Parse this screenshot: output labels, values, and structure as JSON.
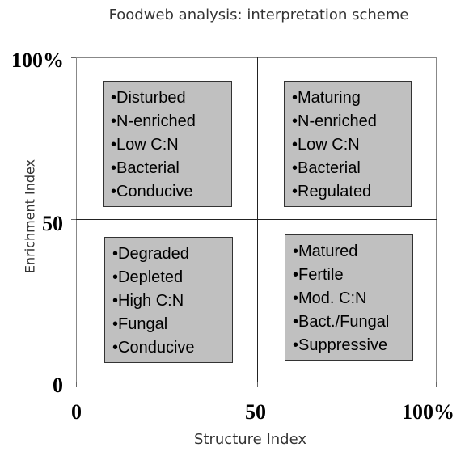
{
  "title": "Foodweb analysis: interpretation scheme",
  "axes": {
    "x_title": "Structure Index",
    "y_title": "Enrichment Index",
    "x_ticks": [
      "0",
      "50",
      "100%"
    ],
    "y_ticks": [
      "100%",
      "50",
      "0"
    ]
  },
  "quadrants": {
    "top_left": [
      "•Disturbed",
      "•N-enriched",
      "•Low C:N",
      "•Bacterial",
      "•Conducive"
    ],
    "top_right": [
      "•Maturing",
      "•N-enriched",
      "•Low C:N",
      "•Bacterial",
      "•Regulated"
    ],
    "bottom_left": [
      "•Degraded",
      "•Depleted",
      "•High C:N",
      "•Fungal",
      "•Conducive"
    ],
    "bottom_right": [
      "•Matured",
      "•Fertile",
      "•Mod. C:N",
      "•Bact./Fungal",
      "•Suppressive"
    ]
  },
  "colors": {
    "box_fill": "#c0c0c0",
    "grid_line": "#222222"
  }
}
